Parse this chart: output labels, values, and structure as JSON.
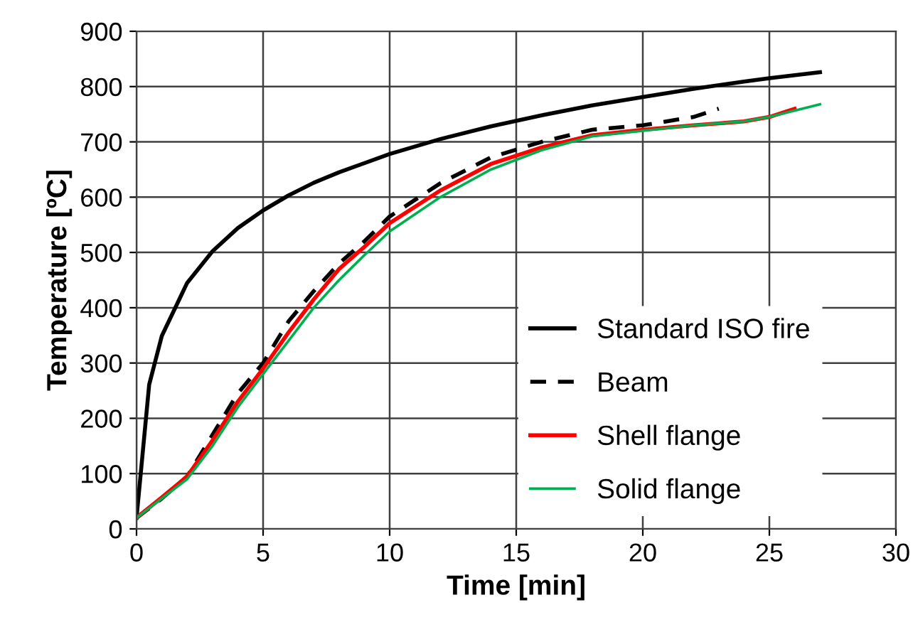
{
  "chart_data": {
    "type": "line",
    "xlabel": "Time [min]",
    "ylabel": "Temperature [ºC]",
    "xlim": [
      0,
      30
    ],
    "xticks": [
      0,
      5,
      10,
      15,
      20,
      25,
      30
    ],
    "ylim": [
      0,
      900
    ],
    "yticks": [
      0,
      100,
      200,
      300,
      400,
      500,
      600,
      700,
      800,
      900
    ],
    "grid": true,
    "legend": "bottom right",
    "series": [
      {
        "name": "Standard ISO fire",
        "color": "#000000",
        "line_style": "solid",
        "x": [
          0,
          0.5,
          1,
          2,
          3,
          4,
          5,
          6,
          7,
          8,
          10,
          12,
          14,
          16,
          18,
          20,
          22,
          24,
          25,
          27
        ],
        "values": [
          20,
          261,
          349,
          445,
          502,
          544,
          576,
          603,
          626,
          645,
          678,
          705,
          728,
          748,
          766,
          781,
          796,
          809,
          815,
          826
        ]
      },
      {
        "name": "Beam",
        "color": "#000000",
        "line_style": "dashed",
        "x": [
          0,
          1,
          2,
          3,
          4,
          5,
          6,
          7,
          8,
          9,
          10,
          12,
          14,
          16,
          18,
          20,
          22,
          23
        ],
        "values": [
          20,
          55,
          95,
          170,
          245,
          300,
          375,
          430,
          480,
          520,
          565,
          625,
          672,
          700,
          722,
          730,
          745,
          760
        ]
      },
      {
        "name": "Shell flange",
        "color": "#ff0000",
        "line_style": "solid",
        "x": [
          0,
          1,
          2,
          3,
          4,
          5,
          6,
          7,
          8,
          9,
          10,
          12,
          14,
          16,
          18,
          20,
          22,
          24,
          25,
          26
        ],
        "values": [
          20,
          57,
          95,
          160,
          230,
          290,
          355,
          415,
          470,
          510,
          553,
          612,
          660,
          690,
          712,
          722,
          730,
          737,
          745,
          760
        ]
      },
      {
        "name": "Solid flange",
        "color": "#00b050",
        "line_style": "solid",
        "x": [
          0,
          1,
          2,
          3,
          4,
          5,
          6,
          7,
          8,
          9,
          10,
          12,
          14,
          16,
          18,
          20,
          22,
          24,
          25,
          27
        ],
        "values": [
          20,
          55,
          90,
          150,
          220,
          280,
          340,
          400,
          450,
          495,
          538,
          600,
          650,
          685,
          710,
          720,
          730,
          737,
          745,
          768
        ]
      }
    ]
  }
}
